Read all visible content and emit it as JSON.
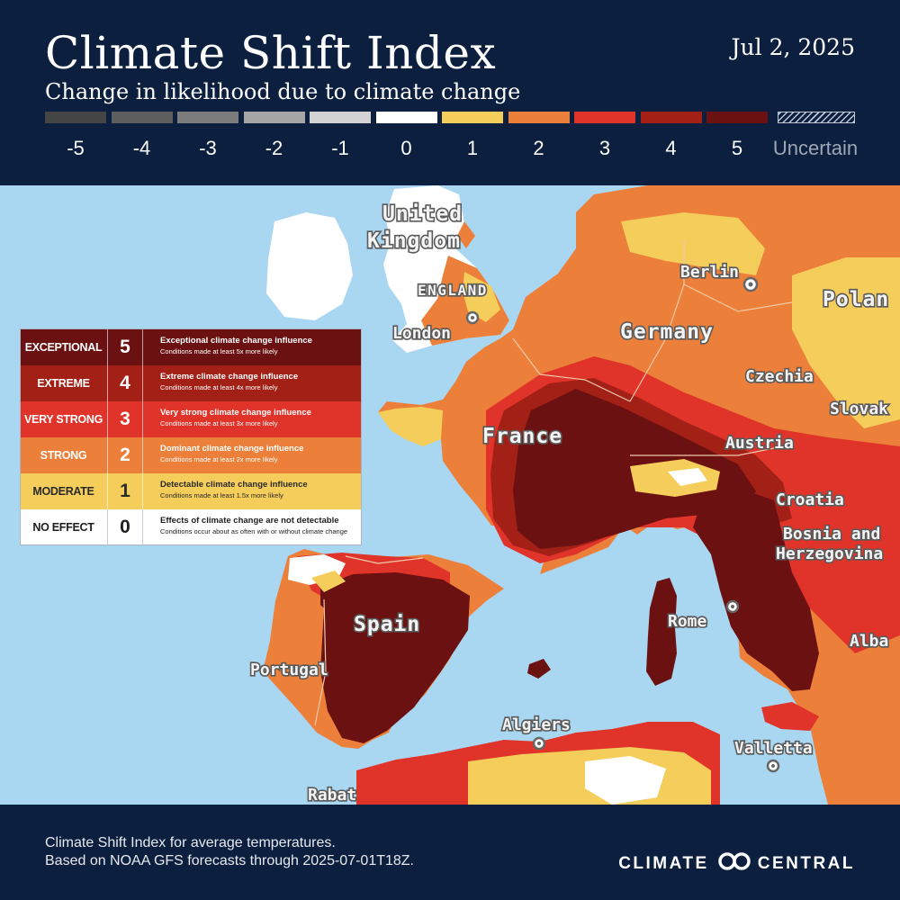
{
  "header": {
    "title": "Climate Shift Index",
    "subtitle": "Change in likelihood due to climate change",
    "date": "Jul 2, 2025"
  },
  "scale": [
    {
      "label": "-5",
      "color": "#454545"
    },
    {
      "label": "-4",
      "color": "#5e5e5e"
    },
    {
      "label": "-3",
      "color": "#7c7c7c"
    },
    {
      "label": "-2",
      "color": "#a5a5a5"
    },
    {
      "label": "-1",
      "color": "#d2d2d2"
    },
    {
      "label": "0",
      "color": "#ffffff"
    },
    {
      "label": "1",
      "color": "#f5cd5a"
    },
    {
      "label": "2",
      "color": "#ec803a"
    },
    {
      "label": "3",
      "color": "#e0342a"
    },
    {
      "label": "4",
      "color": "#a32017"
    },
    {
      "label": "5",
      "color": "#6b1111"
    },
    {
      "label": "Uncertain",
      "color": "hatched"
    }
  ],
  "map": {
    "colors": {
      "sea": "#a9d6f1",
      "land_neutral": "#ffffff",
      "csi1": "#f5cd5a",
      "csi2": "#ec803a",
      "csi3": "#e0342a",
      "csi4": "#a32017",
      "csi5": "#6b1111"
    },
    "labels": {
      "united_kingdom_1": "United",
      "united_kingdom_2": "Kingdom",
      "england": "ENGLAND",
      "london": "London",
      "berlin": "Berlin",
      "germany": "Germany",
      "poland": "Polan",
      "czechia": "Czechia",
      "slovakia": "Slovak",
      "france": "France",
      "austria": "Austria",
      "croatia": "Croatia",
      "bosnia_1": "Bosnia and",
      "bosnia_2": "Herzegovina",
      "spain": "Spain",
      "portugal": "Portugal",
      "rome": "Rome",
      "albania": "Alba",
      "algiers": "Algiers",
      "valletta": "Valletta",
      "rabat": "Rabat"
    }
  },
  "legend": [
    {
      "name": "EXCEPTIONAL",
      "value": "5",
      "title": "Exceptional climate change influence",
      "sub": "Conditions made at least 5x more likely",
      "bg": "#6b1111",
      "fg": "#ffffff"
    },
    {
      "name": "EXTREME",
      "value": "4",
      "title": "Extreme climate change influence",
      "sub": "Conditions made at least 4x more likely",
      "bg": "#a32017",
      "fg": "#ffffff"
    },
    {
      "name": "VERY STRONG",
      "value": "3",
      "title": "Very strong climate change influence",
      "sub": "Conditions made at least 3x more likely",
      "bg": "#e0342a",
      "fg": "#ffffff"
    },
    {
      "name": "STRONG",
      "value": "2",
      "title": "Dominant climate change influence",
      "sub": "Conditions made at least 2x more likely",
      "bg": "#ec803a",
      "fg": "#ffffff"
    },
    {
      "name": "MODERATE",
      "value": "1",
      "title": "Detectable climate change influence",
      "sub": "Conditions made at least 1.5x more likely",
      "bg": "#f5cd5a",
      "fg": "#2a2a2a"
    },
    {
      "name": "NO EFFECT",
      "value": "0",
      "title": "Effects of climate change are not detectable",
      "sub": "Conditions occur about as often with or without climate change",
      "bg": "#ffffff",
      "fg": "#1e1e1e"
    }
  ],
  "footer": {
    "line1": "Climate Shift Index for average temperatures.",
    "line2": "Based on NOAA GFS forecasts through 2025-07-01T18Z.",
    "brand_left": "CLIMATE",
    "brand_right": "CENTRAL",
    "brand_logo": "climate-central-logo-icon"
  }
}
